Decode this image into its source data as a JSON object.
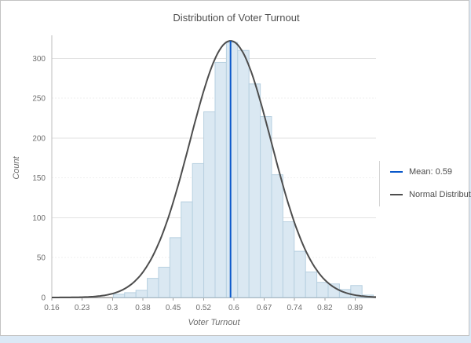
{
  "frame": {
    "border_color": "#c3c3c3",
    "bottom_strip_color": "#dbe9f6"
  },
  "chart": {
    "title": "Distribution of Voter Turnout"
  },
  "chart_data": {
    "type": "histogram",
    "title": "Distribution of Voter Turnout",
    "xlabel": "Voter Turnout",
    "ylabel": "Count",
    "xlim": [
      0.16,
      0.94
    ],
    "ylim": [
      0,
      325
    ],
    "x_tick_labels": [
      "0.16",
      "0.23",
      "0.3",
      "0.38",
      "0.45",
      "0.52",
      "0.6",
      "0.67",
      "0.74",
      "0.82",
      "0.89"
    ],
    "x_tick_values": [
      0.16,
      0.233,
      0.306,
      0.379,
      0.452,
      0.525,
      0.598,
      0.671,
      0.744,
      0.817,
      0.89
    ],
    "y_ticks": [
      0,
      50,
      100,
      150,
      200,
      250,
      300
    ],
    "grid": "horizontal",
    "bins": {
      "start": 0.308,
      "width": 0.0272,
      "counts": [
        4,
        6,
        9,
        24,
        38,
        75,
        120,
        168,
        233,
        295,
        320,
        310,
        268,
        227,
        154,
        95,
        58,
        32,
        19,
        17,
        10,
        15,
        3
      ]
    },
    "mean": {
      "value": 0.59,
      "label": "Mean: 0.59"
    },
    "normal_curve": {
      "mean": 0.59,
      "sigma": 0.098,
      "peak": 322,
      "label": "Normal Distribution"
    },
    "legend": [
      {
        "label": "Mean: 0.59",
        "color": "#0a58ca"
      },
      {
        "label": "Normal Distribution",
        "color": "#4d4d4d"
      }
    ],
    "legend_position": "right",
    "colors": {
      "bar_fill": "#dae8f2",
      "bar_stroke": "#b7d0e0",
      "curve": "#4d4d4d",
      "mean_line": "#0a58ca",
      "grid_major": "#e2e2e2",
      "grid_minor": "#efefef",
      "axis": "#9e9e9e",
      "tick_text": "#6e6e6e"
    }
  }
}
